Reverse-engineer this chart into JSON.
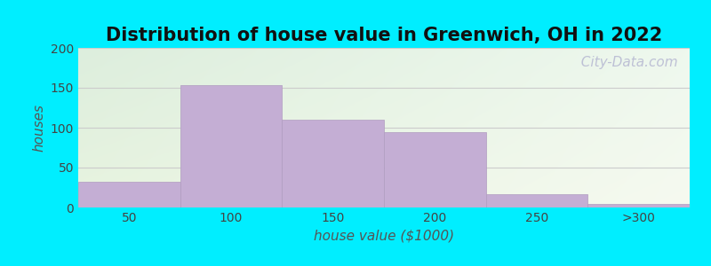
{
  "title": "Distribution of house value in Greenwich, OH in 2022",
  "xlabel": "house value ($1000)",
  "ylabel": "houses",
  "bar_labels": [
    "50",
    "100",
    "150",
    "200",
    "250",
    ">300"
  ],
  "bar_values": [
    32,
    153,
    110,
    95,
    17,
    4
  ],
  "bar_color": "#c4aed4",
  "bar_edge_color": "#b09cc0",
  "ylim": [
    0,
    200
  ],
  "yticks": [
    0,
    50,
    100,
    150,
    200
  ],
  "bg_color_outer": "#00eeff",
  "bg_grad_topleft": "#ddeedd",
  "bg_grad_topright": "#eef8ee",
  "bg_grad_bottomleft": "#e8f4e0",
  "bg_grad_bottomright": "#f8faf0",
  "watermark": "  City-Data.com",
  "title_fontsize": 15,
  "axis_label_fontsize": 11,
  "tick_fontsize": 10,
  "grid_color": "#cccccc"
}
